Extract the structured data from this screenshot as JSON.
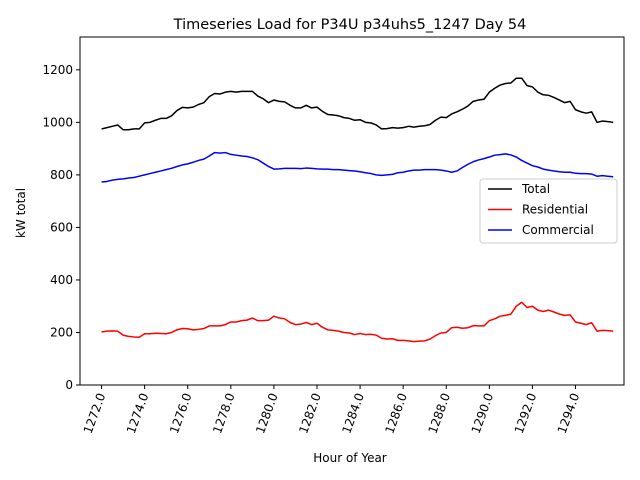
{
  "chart_data": {
    "type": "line",
    "title": "Timeseries Load for P34U p34uhs5_1247  Day 54",
    "xlabel": "Hour of Year",
    "ylabel": "kW total",
    "xlim": [
      1271.0,
      1296.25
    ],
    "ylim": [
      0,
      1325
    ],
    "xticks": [
      1272.0,
      1274.0,
      1276.0,
      1278.0,
      1280.0,
      1282.0,
      1284.0,
      1286.0,
      1288.0,
      1290.0,
      1292.0,
      1294.0
    ],
    "xtick_labels": [
      "1272.0",
      "1274.0",
      "1276.0",
      "1278.0",
      "1280.0",
      "1282.0",
      "1284.0",
      "1286.0",
      "1288.0",
      "1290.0",
      "1292.0",
      "1294.0"
    ],
    "yticks": [
      0,
      200,
      400,
      600,
      800,
      1000,
      1200
    ],
    "ytick_labels": [
      "0",
      "200",
      "400",
      "600",
      "800",
      "1000",
      "1200"
    ],
    "grid": false,
    "legend": "center-right",
    "x_start": 1272.0,
    "x_step": 0.25,
    "series": [
      {
        "name": "Total",
        "color": "#000000",
        "values": [
          975,
          980,
          985,
          990,
          972,
          972,
          975,
          975,
          998,
          1000,
          1008,
          1015,
          1015,
          1025,
          1045,
          1057,
          1055,
          1058,
          1068,
          1075,
          1098,
          1110,
          1108,
          1115,
          1118,
          1115,
          1118,
          1118,
          1118,
          1100,
          1090,
          1075,
          1085,
          1080,
          1078,
          1065,
          1055,
          1055,
          1065,
          1055,
          1058,
          1042,
          1030,
          1028,
          1025,
          1018,
          1015,
          1008,
          1010,
          1000,
          998,
          990,
          975,
          976,
          980,
          978,
          980,
          985,
          982,
          985,
          987,
          992,
          1008,
          1020,
          1018,
          1032,
          1040,
          1050,
          1062,
          1080,
          1085,
          1088,
          1115,
          1130,
          1142,
          1148,
          1150,
          1168,
          1168,
          1140,
          1135,
          1115,
          1105,
          1103,
          1095,
          1085,
          1075,
          1080,
          1048,
          1040,
          1035,
          1040,
          1000,
          1005,
          1003,
          1000
        ]
      },
      {
        "name": "Residential",
        "color": "#ff0000",
        "values": [
          202,
          205,
          206,
          205,
          190,
          185,
          183,
          182,
          195,
          195,
          197,
          196,
          195,
          200,
          210,
          215,
          214,
          210,
          212,
          215,
          225,
          225,
          225,
          230,
          240,
          240,
          245,
          247,
          255,
          245,
          245,
          247,
          262,
          255,
          252,
          238,
          230,
          232,
          238,
          230,
          235,
          220,
          210,
          208,
          205,
          200,
          198,
          192,
          196,
          192,
          193,
          190,
          178,
          175,
          176,
          170,
          170,
          168,
          165,
          167,
          168,
          175,
          188,
          198,
          200,
          218,
          220,
          216,
          218,
          226,
          225,
          225,
          245,
          252,
          262,
          265,
          270,
          300,
          315,
          295,
          300,
          285,
          280,
          285,
          278,
          270,
          265,
          267,
          240,
          235,
          230,
          237,
          205,
          208,
          207,
          205
        ]
      },
      {
        "name": "Commercial",
        "color": "#0000ff",
        "values": [
          773,
          775,
          780,
          783,
          785,
          788,
          790,
          795,
          800,
          805,
          810,
          815,
          820,
          825,
          832,
          838,
          842,
          848,
          855,
          860,
          872,
          885,
          883,
          885,
          878,
          875,
          872,
          870,
          865,
          858,
          845,
          832,
          822,
          823,
          825,
          825,
          825,
          824,
          826,
          825,
          823,
          822,
          822,
          820,
          820,
          818,
          816,
          815,
          812,
          808,
          805,
          800,
          798,
          800,
          802,
          808,
          810,
          815,
          818,
          818,
          820,
          820,
          820,
          818,
          815,
          810,
          815,
          828,
          840,
          850,
          857,
          862,
          868,
          875,
          877,
          880,
          876,
          868,
          855,
          845,
          835,
          830,
          822,
          818,
          815,
          812,
          810,
          810,
          806,
          805,
          805,
          803,
          795,
          797,
          795,
          793
        ]
      }
    ]
  }
}
